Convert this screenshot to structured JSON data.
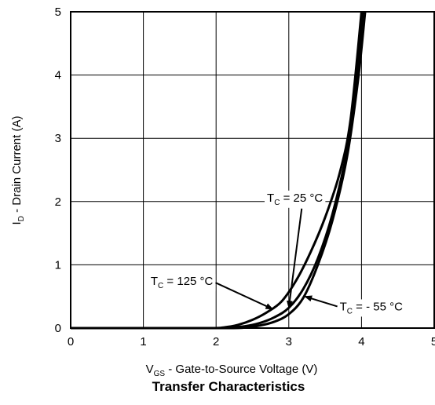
{
  "chart_data": {
    "type": "line",
    "title": "Transfer Characteristics",
    "xlabel": {
      "main": "V",
      "sub": "GS",
      "rest": " - Gate-to-Source Voltage (V)"
    },
    "ylabel": {
      "main": "I",
      "sub": "D",
      "rest": " - Drain Current (A)"
    },
    "xlim": [
      0,
      5
    ],
    "ylim": [
      0,
      5
    ],
    "xticks": [
      "0",
      "1",
      "2",
      "3",
      "4",
      "5"
    ],
    "yticks": [
      "0",
      "1",
      "2",
      "3",
      "4",
      "5"
    ],
    "grid": true,
    "series": [
      {
        "name": "TC = 125 °C",
        "label": {
          "main": "T",
          "sub": "C",
          "rest": " = 125 °C"
        },
        "x": [
          0.0,
          1.0,
          1.9,
          2.1,
          2.3,
          2.5,
          2.7,
          2.9,
          3.1,
          3.3,
          3.5,
          3.7,
          3.85,
          4.0
        ],
        "y": [
          0.0,
          0.0,
          0.0,
          0.01,
          0.05,
          0.13,
          0.25,
          0.42,
          0.75,
          1.2,
          1.75,
          2.45,
          3.3,
          5.0
        ]
      },
      {
        "name": "TC = 25 °C",
        "label": {
          "main": "T",
          "sub": "C",
          "rest": " = 25 °C"
        },
        "x": [
          0.0,
          1.0,
          2.0,
          2.2,
          2.4,
          2.6,
          2.8,
          3.0,
          3.2,
          3.4,
          3.6,
          3.8,
          3.9,
          4.02
        ],
        "y": [
          0.0,
          0.0,
          0.0,
          0.01,
          0.03,
          0.08,
          0.17,
          0.32,
          0.62,
          1.1,
          1.8,
          2.8,
          3.6,
          5.0
        ]
      },
      {
        "name": "TC = - 55 °C",
        "label": {
          "main": "T",
          "sub": "C",
          "rest": " = - 55 °C"
        },
        "x": [
          0.0,
          1.0,
          2.2,
          2.4,
          2.6,
          2.8,
          3.0,
          3.2,
          3.4,
          3.6,
          3.8,
          3.95,
          4.05
        ],
        "y": [
          0.0,
          0.0,
          0.0,
          0.01,
          0.04,
          0.1,
          0.22,
          0.48,
          1.0,
          1.7,
          2.7,
          3.9,
          5.0
        ]
      }
    ],
    "annotations": [
      {
        "series": 1,
        "text_x": 2.7,
        "text_y": 2.0,
        "arrow_to": [
          3.0,
          0.32
        ]
      },
      {
        "series": 0,
        "text_x": 1.1,
        "text_y": 0.68,
        "arrow_to": [
          2.78,
          0.3
        ]
      },
      {
        "series": 2,
        "text_x": 3.7,
        "text_y": 0.28,
        "arrow_to": [
          3.22,
          0.5
        ]
      }
    ]
  }
}
